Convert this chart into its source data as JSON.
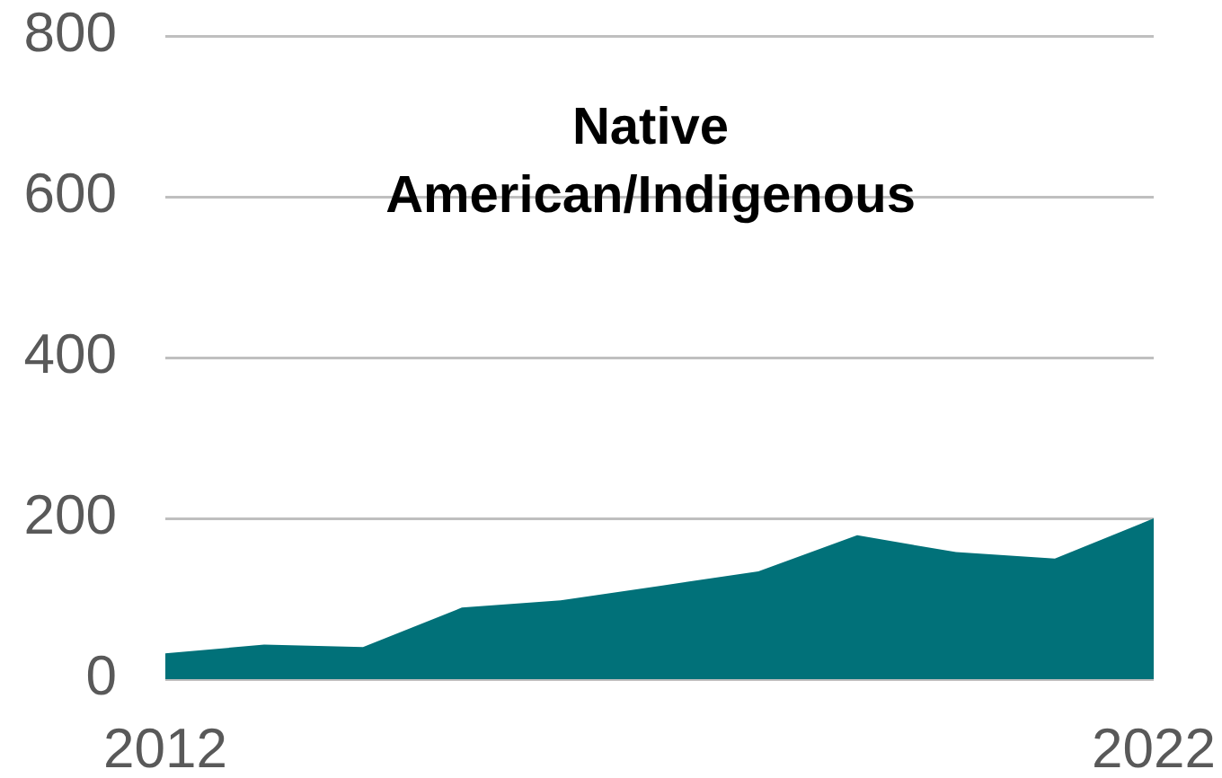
{
  "chart_data": {
    "type": "area",
    "title": "Native American/Indigenous",
    "x": [
      2012,
      2013,
      2014,
      2015,
      2016,
      2017,
      2018,
      2019,
      2020,
      2021,
      2022
    ],
    "series": [
      {
        "color": "#017179",
        "values": [
          32,
          43,
          40,
          89,
          98,
          116,
          134,
          179,
          158,
          150,
          200
        ]
      }
    ],
    "xlim": [
      2012,
      2022
    ],
    "xticks": [
      2012,
      2022
    ],
    "ylim": [
      0,
      800
    ],
    "yticks": [
      0,
      200,
      400,
      600,
      800
    ],
    "grid": "y"
  }
}
